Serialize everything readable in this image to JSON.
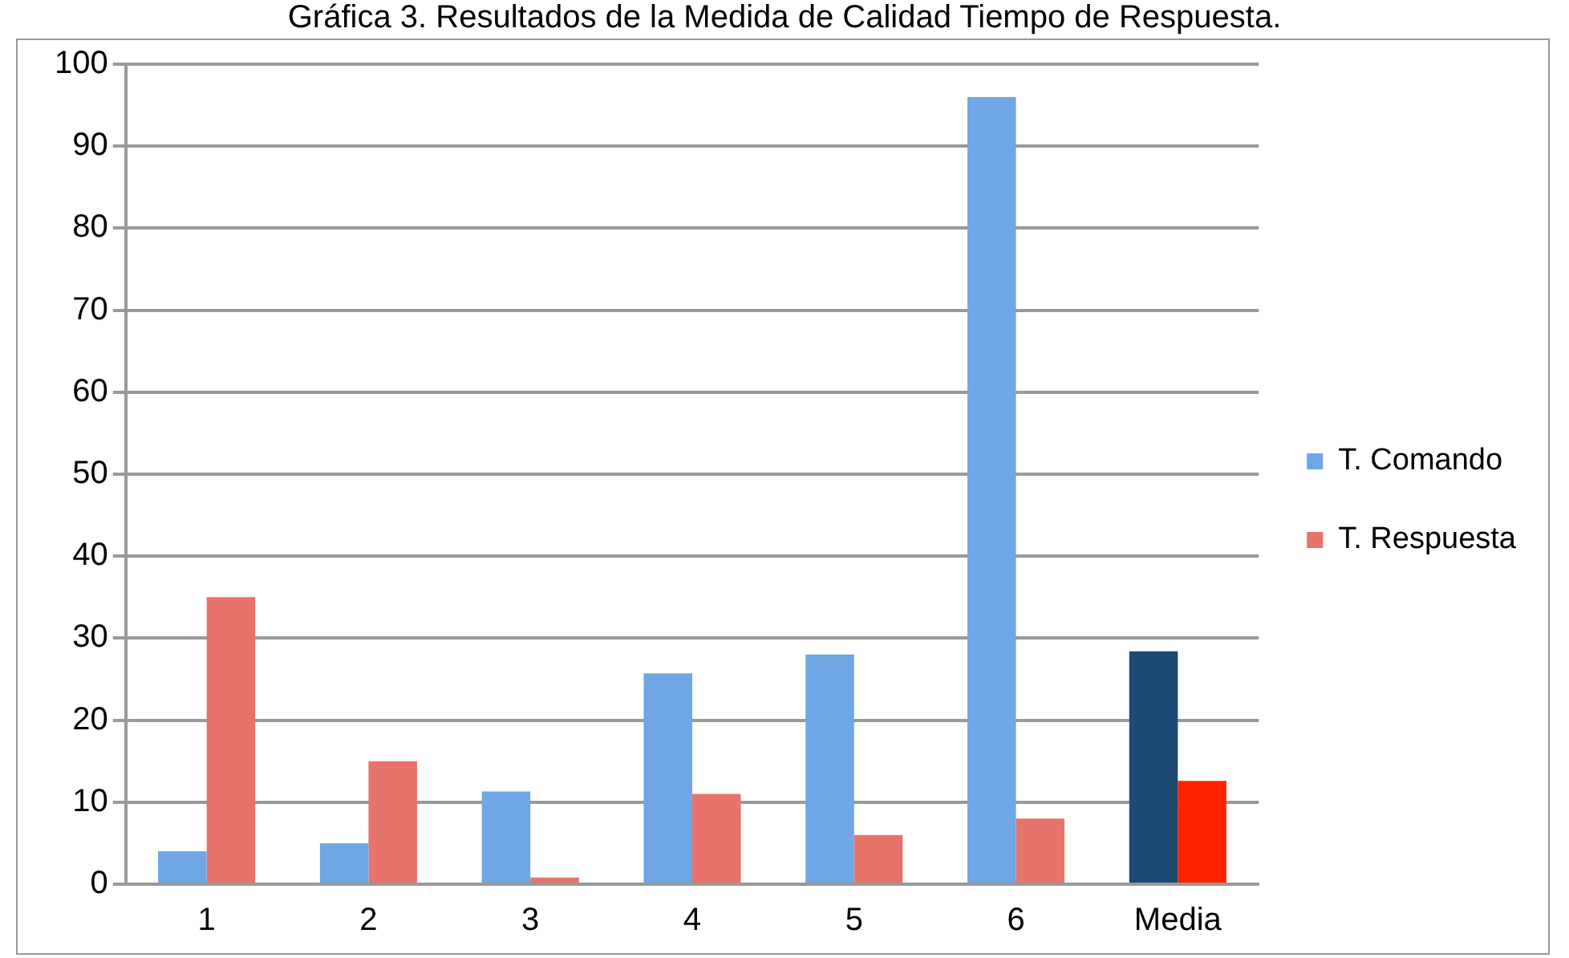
{
  "chart_data": {
    "type": "bar",
    "title": "Gráfica 3.  Resultados de la Medida de Calidad Tiempo de Respuesta.",
    "categories": [
      "1",
      "2",
      "3",
      "4",
      "5",
      "6",
      "Media"
    ],
    "series": [
      {
        "name": "T. Comando",
        "color": "#6fa6e6",
        "colors": [
          "#6fa6e6",
          "#6fa6e6",
          "#6fa6e6",
          "#6fa6e6",
          "#6fa6e6",
          "#6fa6e6",
          "#1f4a73"
        ],
        "values": [
          4,
          5,
          11.3,
          25.7,
          28,
          96,
          28.4
        ]
      },
      {
        "name": "T. Respuesta",
        "color": "#e8736a",
        "colors": [
          "#e8736a",
          "#e8736a",
          "#e8736a",
          "#e8736a",
          "#e8736a",
          "#e8736a",
          "#ff2200"
        ],
        "values": [
          35,
          15,
          0.8,
          11,
          6,
          8,
          12.6
        ]
      }
    ],
    "ylim": [
      0,
      100
    ],
    "yticks": [
      0,
      10,
      20,
      30,
      40,
      50,
      60,
      70,
      80,
      90,
      100
    ],
    "grid": "y",
    "legend": "right"
  }
}
